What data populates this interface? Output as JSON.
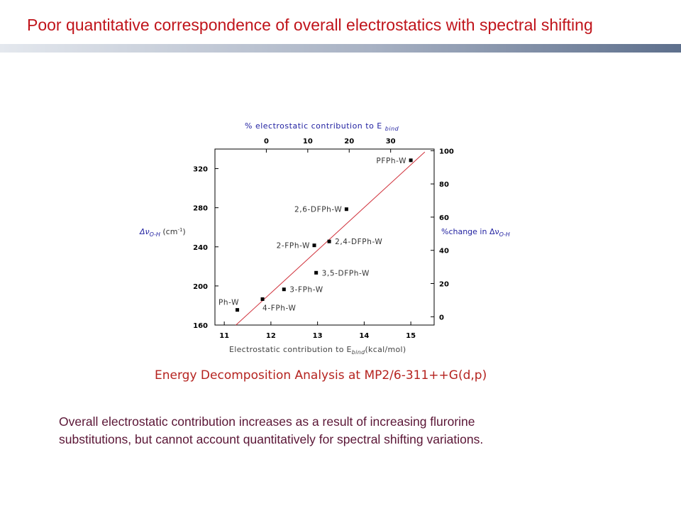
{
  "slide": {
    "title": "Poor quantitative correspondence of overall electrostatics with spectral shifting",
    "caption": "Energy Decomposition Analysis at MP2/6-311++G(d,p)",
    "summary_line1": "Overall electrostatic contribution increases as a result of increasing flurorine",
    "summary_line2": "substitutions,  but  cannot account quantitatively  for spectral shifting variations."
  },
  "colors": {
    "title": "#c0141b",
    "axis_label_blue": "#1f1fa0",
    "fit_line": "#d0303a",
    "marker": "#000000"
  },
  "chart_data": {
    "type": "scatter",
    "x": {
      "label": "Electrostatic contribution to E",
      "label_sub": "bind",
      "label_unit": "(kcal/mol)",
      "range": [
        10.8,
        15.5
      ],
      "ticks": [
        11,
        12,
        13,
        14,
        15
      ]
    },
    "y_left": {
      "label_symbol": "Δν",
      "label_sub": "O-H",
      "label_unit": "(cm",
      "label_sup": "-1",
      "label_close": ")",
      "range": [
        160,
        340
      ],
      "ticks": [
        160,
        200,
        240,
        280,
        320
      ]
    },
    "x_top": {
      "label": "% electrostatic contribution to E",
      "label_sub": "bind",
      "range": [
        -12.4,
        40.5
      ],
      "ticks": [
        0,
        10,
        20,
        30
      ]
    },
    "y_right": {
      "label": "%change in Δν",
      "label_sub": "O-H",
      "range": [
        -5,
        101
      ],
      "ticks": [
        0,
        20,
        40,
        60,
        80,
        100
      ]
    },
    "points": [
      {
        "label": "Ph-W",
        "x": 11.28,
        "y": 175.5,
        "label_pos": "above-left"
      },
      {
        "label": "4-FPh-W",
        "x": 11.82,
        "y": 186.5,
        "label_pos": "below-right"
      },
      {
        "label": "3-FPh-W",
        "x": 12.28,
        "y": 196.5,
        "label_pos": "right"
      },
      {
        "label": "3,5-DFPh-W",
        "x": 12.97,
        "y": 213.5,
        "label_pos": "right"
      },
      {
        "label": "2-FPh-W",
        "x": 12.93,
        "y": 241.5,
        "label_pos": "left"
      },
      {
        "label": "2,4-DFPh-W",
        "x": 13.25,
        "y": 245.5,
        "label_pos": "right"
      },
      {
        "label": "2,6-DFPh-W",
        "x": 13.62,
        "y": 278.5,
        "label_pos": "left"
      },
      {
        "label": "PFPh-W",
        "x": 15.0,
        "y": 328.5,
        "label_pos": "left"
      }
    ],
    "fit_line": {
      "y_start": [
        11.25,
        160
      ],
      "y_end": [
        15.3,
        337
      ]
    }
  }
}
